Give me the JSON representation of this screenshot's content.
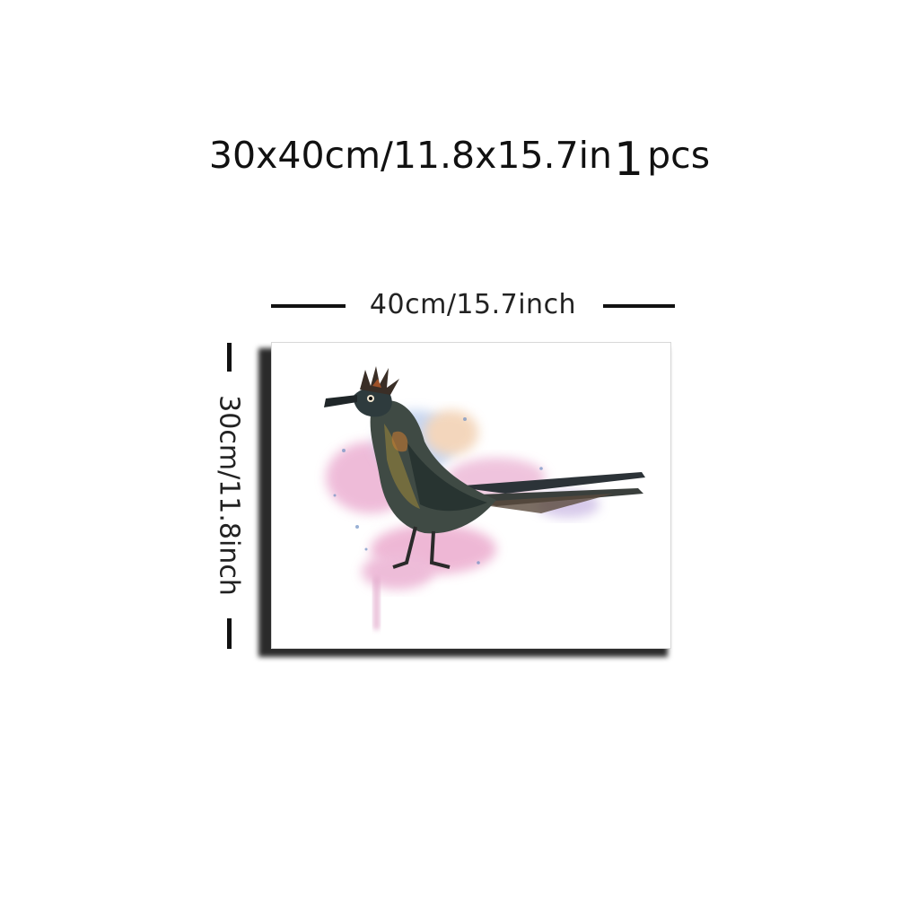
{
  "header": {
    "size_text": "30x40cm/11.8x15.7in",
    "quantity": "1",
    "quantity_unit": "pcs"
  },
  "dimensions": {
    "width_label": "40cm/15.7inch",
    "height_label": "30cm/11.8inch"
  },
  "artwork": {
    "subject": "watercolor roadrunner bird",
    "splash_colors": [
      "#e7a0c8",
      "#a9c4e8",
      "#f2c9a0"
    ]
  }
}
